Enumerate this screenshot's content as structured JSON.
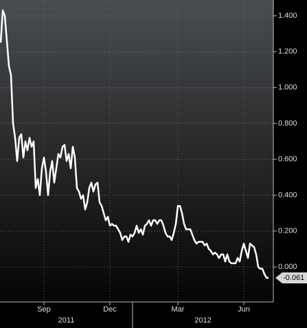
{
  "chart_data": {
    "type": "line",
    "categories": [
      null,
      null,
      null,
      null,
      null,
      null,
      null,
      null,
      null,
      null,
      null,
      null,
      null,
      null,
      null,
      null,
      null,
      null,
      null,
      null,
      null,
      "Sep",
      null,
      null,
      null,
      null,
      null,
      null,
      null,
      null,
      null,
      null,
      null,
      null,
      null,
      null,
      null,
      null,
      null,
      null,
      null,
      null,
      null,
      null,
      null,
      null,
      null,
      null,
      null,
      null,
      null,
      null,
      null,
      "Dec",
      null,
      null,
      null,
      null,
      null,
      null,
      null,
      null,
      null,
      null,
      null,
      null,
      null,
      null,
      null,
      null,
      null,
      null,
      null,
      null,
      null,
      null,
      null,
      null,
      null,
      null,
      null,
      null,
      null,
      null,
      null,
      null,
      "Mar",
      null,
      null,
      null,
      null,
      null,
      null,
      null,
      null,
      null,
      null,
      null,
      null,
      null,
      null,
      null,
      null,
      null,
      null,
      null,
      null,
      null,
      null,
      null,
      null,
      null,
      null,
      null,
      null,
      null,
      null,
      null,
      "Jun",
      null,
      null,
      null,
      null,
      null,
      null,
      null,
      null,
      null,
      null,
      null,
      null
    ],
    "years": [
      "2011",
      "2012"
    ],
    "series": [
      {
        "color": "#ffffff",
        "values": [
          1.25,
          1.43,
          1.4,
          1.26,
          1.12,
          1.07,
          0.8,
          0.72,
          0.59,
          0.72,
          0.74,
          0.61,
          0.7,
          0.65,
          0.72,
          0.67,
          0.7,
          0.44,
          0.49,
          0.4,
          0.55,
          0.61,
          0.53,
          0.4,
          0.53,
          0.59,
          0.47,
          0.55,
          0.63,
          0.61,
          0.67,
          0.68,
          0.59,
          0.63,
          0.55,
          0.67,
          0.61,
          0.44,
          0.42,
          0.38,
          0.4,
          0.32,
          0.36,
          0.44,
          0.47,
          0.42,
          0.46,
          0.47,
          0.36,
          0.34,
          0.3,
          0.26,
          0.28,
          0.23,
          0.24,
          0.23,
          0.23,
          0.21,
          0.19,
          0.15,
          0.17,
          0.17,
          0.14,
          0.18,
          0.17,
          0.19,
          0.23,
          0.19,
          0.21,
          0.18,
          0.23,
          0.24,
          0.26,
          0.23,
          0.26,
          0.26,
          0.24,
          0.26,
          0.26,
          0.23,
          0.19,
          0.17,
          0.17,
          0.15,
          0.19,
          0.24,
          0.34,
          0.34,
          0.3,
          0.24,
          0.21,
          0.21,
          0.21,
          0.18,
          0.15,
          0.13,
          0.14,
          0.14,
          0.14,
          0.12,
          0.13,
          0.1,
          0.09,
          0.07,
          0.08,
          0.07,
          0.05,
          0.07,
          0.07,
          0.03,
          0.07,
          0.03,
          0.02,
          0.02,
          0.02,
          0.05,
          0.03,
          0.09,
          0.13,
          0.09,
          0.05,
          0.13,
          0.12,
          0.11,
          0.07,
          0.0,
          -0.01,
          -0.01,
          -0.04,
          -0.06,
          -0.061
        ]
      }
    ],
    "last_value_label": "-0.061",
    "ylim": [
      -0.195,
      1.488
    ],
    "yticks": [
      {
        "value": 0,
        "label": "0.000"
      },
      {
        "value": 0.2,
        "label": "0.200"
      },
      {
        "value": 0.4,
        "label": "0.400"
      },
      {
        "value": 0.6,
        "label": "0.600"
      },
      {
        "value": 0.8,
        "label": "0.800"
      },
      {
        "value": 1.0,
        "label": "1.000"
      },
      {
        "value": 1.2,
        "label": "1.200"
      },
      {
        "value": 1.4,
        "label": "1.400"
      }
    ],
    "grid": true
  }
}
